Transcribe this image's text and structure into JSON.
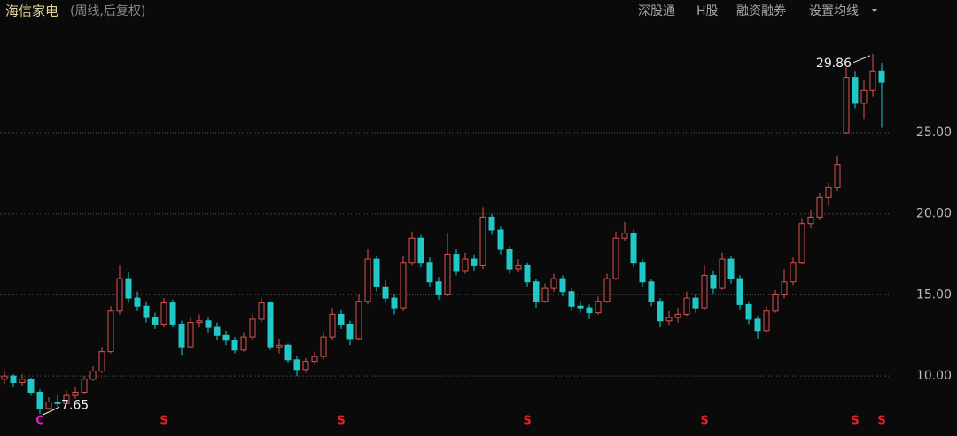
{
  "chart_data": {
    "type": "candlestick",
    "title": "海信家电",
    "subtitle": "(周线,后复权)",
    "toolbar": [
      "深股通",
      "H股",
      "融资融券",
      "设置均线"
    ],
    "ylim": [
      8.1,
      31.65
    ],
    "yticks": [
      {
        "value": 10,
        "label": "10.00"
      },
      {
        "value": 15,
        "label": "15.00"
      },
      {
        "value": 20,
        "label": "20.00"
      },
      {
        "value": 25,
        "label": "25.00"
      }
    ],
    "grid": true,
    "up_color": "#d9534f",
    "down_color": "#22c8c8",
    "open": [
      9.8,
      10.0,
      9.6,
      9.8,
      9.0,
      8.0,
      8.4,
      8.3,
      8.8,
      9.0,
      9.8,
      10.3,
      11.5,
      14.0,
      16.0,
      14.8,
      14.3,
      13.6,
      13.2,
      14.5,
      13.2,
      11.8,
      13.3,
      13.4,
      13.0,
      12.5,
      12.2,
      11.6,
      12.4,
      13.5,
      14.5,
      11.8,
      11.9,
      11.0,
      10.4,
      10.9,
      11.2,
      12.4,
      13.8,
      13.2,
      12.3,
      14.6,
      17.2,
      15.5,
      14.8,
      14.2,
      17.0,
      18.5,
      17.0,
      15.8,
      15.0,
      17.5,
      16.5,
      17.2,
      16.8,
      19.8,
      19.0,
      17.8,
      16.6,
      16.8,
      15.8,
      14.6,
      15.4,
      16.0,
      15.2,
      14.3,
      14.2,
      13.9,
      14.6,
      16.0,
      18.5,
      18.8,
      17.0,
      15.8,
      14.6,
      13.4,
      13.6,
      13.8,
      14.8,
      14.2,
      16.2,
      15.4,
      17.2,
      16.0,
      14.4,
      13.5,
      12.8,
      14.0,
      15.0,
      15.8,
      17.0,
      19.4,
      19.8,
      21.0,
      21.6,
      25.0,
      28.4,
      26.8,
      27.6,
      28.8
    ],
    "high": [
      10.3,
      10.1,
      10.1,
      9.9,
      9.2,
      8.7,
      8.8,
      9.1,
      9.3,
      10.0,
      10.6,
      11.8,
      14.3,
      16.8,
      16.4,
      15.2,
      14.6,
      13.9,
      14.8,
      14.7,
      13.4,
      13.6,
      13.8,
      13.6,
      13.3,
      12.8,
      12.4,
      12.7,
      13.8,
      14.8,
      14.6,
      12.3,
      12.0,
      11.2,
      11.1,
      11.5,
      12.7,
      14.2,
      14.1,
      13.4,
      15.0,
      17.8,
      17.4,
      15.9,
      15.0,
      17.4,
      18.9,
      18.7,
      17.3,
      16.1,
      18.8,
      17.8,
      17.6,
      17.5,
      20.4,
      20.0,
      19.2,
      18.0,
      17.2,
      17.0,
      16.0,
      15.7,
      16.3,
      16.2,
      15.4,
      14.6,
      14.4,
      14.9,
      16.3,
      18.9,
      19.5,
      19.0,
      17.2,
      16.0,
      14.8,
      14.0,
      14.2,
      15.2,
      15.0,
      16.8,
      16.5,
      17.6,
      17.4,
      16.2,
      14.6,
      13.7,
      14.3,
      15.3,
      16.6,
      17.3,
      19.7,
      20.2,
      21.3,
      21.9,
      23.6,
      29.0,
      28.8,
      28.2,
      29.86,
      29.3
    ],
    "low": [
      9.5,
      9.3,
      9.4,
      8.8,
      7.65,
      7.9,
      8.1,
      8.2,
      8.6,
      8.9,
      9.7,
      10.2,
      11.4,
      13.8,
      14.5,
      14.0,
      13.3,
      12.9,
      13.0,
      13.0,
      11.3,
      11.7,
      13.0,
      12.7,
      12.2,
      11.9,
      11.4,
      11.5,
      12.2,
      13.3,
      11.6,
      11.4,
      10.8,
      10.0,
      10.2,
      10.7,
      11.0,
      12.2,
      12.9,
      11.9,
      12.2,
      14.4,
      15.2,
      14.5,
      13.8,
      14.0,
      16.8,
      16.7,
      15.5,
      14.7,
      14.9,
      16.2,
      16.3,
      16.5,
      16.6,
      18.7,
      17.5,
      16.3,
      16.4,
      15.5,
      14.2,
      14.5,
      15.2,
      14.9,
      14.0,
      13.9,
      13.5,
      13.8,
      14.5,
      15.9,
      18.3,
      16.7,
      15.5,
      14.3,
      13.0,
      13.1,
      13.3,
      13.7,
      13.9,
      14.1,
      15.1,
      15.3,
      15.7,
      14.1,
      13.2,
      12.3,
      12.7,
      13.9,
      14.8,
      15.6,
      16.9,
      19.1,
      19.6,
      20.5,
      21.4,
      24.9,
      26.5,
      25.8,
      27.2,
      25.3
    ],
    "close": [
      10.0,
      9.6,
      9.8,
      9.0,
      8.0,
      8.4,
      8.3,
      8.8,
      9.0,
      9.8,
      10.3,
      11.5,
      14.0,
      16.0,
      14.8,
      14.3,
      13.6,
      13.2,
      14.5,
      13.2,
      11.8,
      13.3,
      13.4,
      13.0,
      12.5,
      12.2,
      11.6,
      12.4,
      13.5,
      14.5,
      11.8,
      11.9,
      11.0,
      10.4,
      10.9,
      11.2,
      12.4,
      13.8,
      13.2,
      12.3,
      14.6,
      17.2,
      15.5,
      14.8,
      14.2,
      17.0,
      18.5,
      17.0,
      15.8,
      15.0,
      17.5,
      16.5,
      17.2,
      16.8,
      19.8,
      19.0,
      17.8,
      16.6,
      16.8,
      15.8,
      14.6,
      15.4,
      16.0,
      15.2,
      14.3,
      14.2,
      13.9,
      14.6,
      16.0,
      18.5,
      18.8,
      17.0,
      15.8,
      14.6,
      13.4,
      13.6,
      13.8,
      14.8,
      14.2,
      16.2,
      15.4,
      17.2,
      16.0,
      14.4,
      13.5,
      12.8,
      14.0,
      15.0,
      15.8,
      17.0,
      19.4,
      19.8,
      21.0,
      21.6,
      23.0,
      28.4,
      26.8,
      27.6,
      28.8,
      28.1
    ],
    "markers": [
      {
        "label": "C",
        "index": 4,
        "color": "#e020c0"
      },
      {
        "label": "S",
        "index": 18,
        "color": "#e8202a"
      },
      {
        "label": "S",
        "index": 38,
        "color": "#e8202a"
      },
      {
        "label": "S",
        "index": 59,
        "color": "#e8202a"
      },
      {
        "label": "S",
        "index": 79,
        "color": "#e8202a"
      },
      {
        "label": "S",
        "index": 96,
        "color": "#e8202a"
      },
      {
        "label": "S",
        "index": 99,
        "color": "#e8202a"
      }
    ]
  }
}
